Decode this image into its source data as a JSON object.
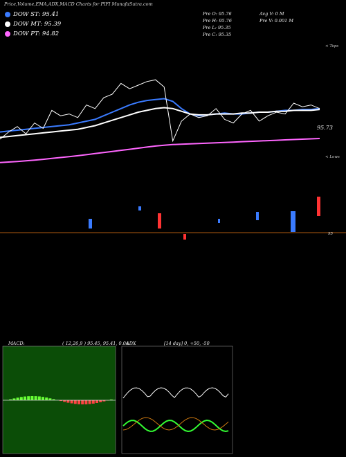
{
  "header": {
    "title": "Price,Volume,EMA,ADX,MACD Charts for PIFI MunafaSutra.com"
  },
  "legend": [
    {
      "label": "DOW ST: 95.41",
      "color": "#3a7bff"
    },
    {
      "label": "DOW MT: 95.39",
      "color": "#ffffff"
    },
    {
      "label": "DOW PT: 94.82",
      "color": "#ff66ff"
    }
  ],
  "info": {
    "prev_open": "Pre   O: 95.76",
    "prev_high": "Pre   H: 95.76",
    "prev_low": "Pre   L: 95.35",
    "prev_close": "Pre   C: 95.35",
    "avg_vol": "Avg V: 0  M",
    "prev_vol": "Pre   V: 0.001 M"
  },
  "price_label": "95.73",
  "tops_label": "< Tops",
  "lows_label": "< Lows",
  "volume_axis_label": "95",
  "macd": {
    "title": "MACD:",
    "params": "( 12,26,9 ) 95.45,  95.41,  0.04"
  },
  "adx": {
    "title": "ADX",
    "params": "[14  day] 0,  +50,  -50"
  },
  "chart_data": [
    {
      "type": "line",
      "series": [
        {
          "name": "DOW ST: 95.41",
          "color": "#3a7bff",
          "values": [
            93.3,
            93.35,
            93.4,
            93.45,
            93.5,
            93.55,
            93.6,
            93.65,
            93.7,
            93.8,
            93.9,
            94.0,
            94.2,
            94.4,
            94.6,
            94.8,
            94.95,
            95.05,
            95.1,
            95.15,
            95.0,
            94.6,
            94.3,
            94.2,
            94.25,
            94.3,
            94.35,
            94.3,
            94.3,
            94.35,
            94.4,
            94.4,
            94.45,
            94.5,
            94.5,
            94.55,
            94.55,
            94.6
          ]
        },
        {
          "name": "DOW MT: 95.39",
          "color": "#ffffff",
          "values": [
            93.0,
            93.05,
            93.1,
            93.15,
            93.2,
            93.25,
            93.3,
            93.35,
            93.4,
            93.45,
            93.55,
            93.65,
            93.8,
            93.95,
            94.1,
            94.25,
            94.4,
            94.5,
            94.6,
            94.65,
            94.6,
            94.45,
            94.3,
            94.25,
            94.25,
            94.3,
            94.3,
            94.3,
            94.35,
            94.35,
            94.4,
            94.4,
            94.45,
            94.45,
            94.5,
            94.5,
            94.5,
            94.55
          ]
        },
        {
          "name": "DOW PT: 94.82",
          "color": "#ff66ff",
          "values": [
            91.6,
            91.63,
            91.66,
            91.7,
            91.74,
            91.78,
            91.83,
            91.88,
            91.93,
            91.98,
            92.04,
            92.1,
            92.16,
            92.22,
            92.28,
            92.34,
            92.4,
            92.46,
            92.52,
            92.56,
            92.6,
            92.62,
            92.64,
            92.66,
            92.68,
            92.7,
            92.72,
            92.74,
            92.76,
            92.78,
            92.8,
            92.82,
            92.84,
            92.86,
            92.88,
            92.9,
            92.92,
            92.94
          ]
        },
        {
          "name": "Price",
          "color": "#ffffff",
          "values": [
            92.9,
            93.3,
            93.6,
            93.2,
            93.8,
            93.5,
            94.5,
            94.2,
            94.3,
            94.1,
            94.8,
            94.6,
            95.2,
            95.4,
            96.0,
            95.7,
            95.9,
            96.1,
            96.2,
            95.8,
            92.8,
            93.9,
            94.3,
            94.1,
            94.2,
            94.6,
            94.0,
            93.8,
            94.3,
            94.5,
            93.9,
            94.2,
            94.4,
            94.3,
            94.9,
            94.7,
            94.8,
            94.6
          ]
        }
      ]
    }
  ]
}
